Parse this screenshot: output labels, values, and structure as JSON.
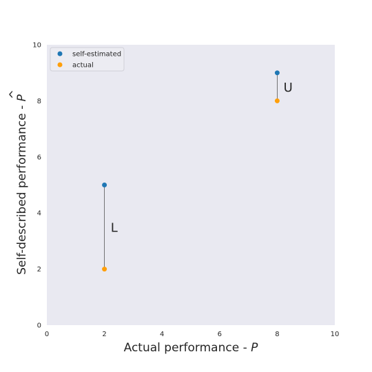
{
  "chart_data": {
    "type": "scatter",
    "xlabel": "Actual performance - ",
    "xlabel_symbol": "P",
    "ylabel": "Self-described performance - ",
    "ylabel_symbol": "P",
    "ylabel_symbol_accent": "^",
    "xlim": [
      0,
      10
    ],
    "ylim": [
      0,
      10
    ],
    "xticks": [
      0,
      2,
      4,
      6,
      8,
      10
    ],
    "yticks": [
      0,
      2,
      4,
      6,
      8,
      10
    ],
    "grid": false,
    "legend_position": "top-left",
    "series": [
      {
        "name": "self-estimated",
        "color": "#1f77b4",
        "points": [
          [
            2,
            5
          ],
          [
            8,
            9
          ]
        ]
      },
      {
        "name": "actual",
        "color": "#ff9f0a",
        "points": [
          [
            2,
            2
          ],
          [
            8,
            8
          ]
        ]
      }
    ],
    "connectors": [
      {
        "x": 2,
        "y1": 2,
        "y2": 5
      },
      {
        "x": 8,
        "y1": 8,
        "y2": 9
      }
    ],
    "annotations": [
      {
        "text": "L",
        "x": 2.1,
        "y": 3.5
      },
      {
        "text": "U",
        "x": 8.1,
        "y": 8.5
      }
    ],
    "colors": {
      "plot_background": "#e9e9f1",
      "connector": "#555555"
    }
  }
}
